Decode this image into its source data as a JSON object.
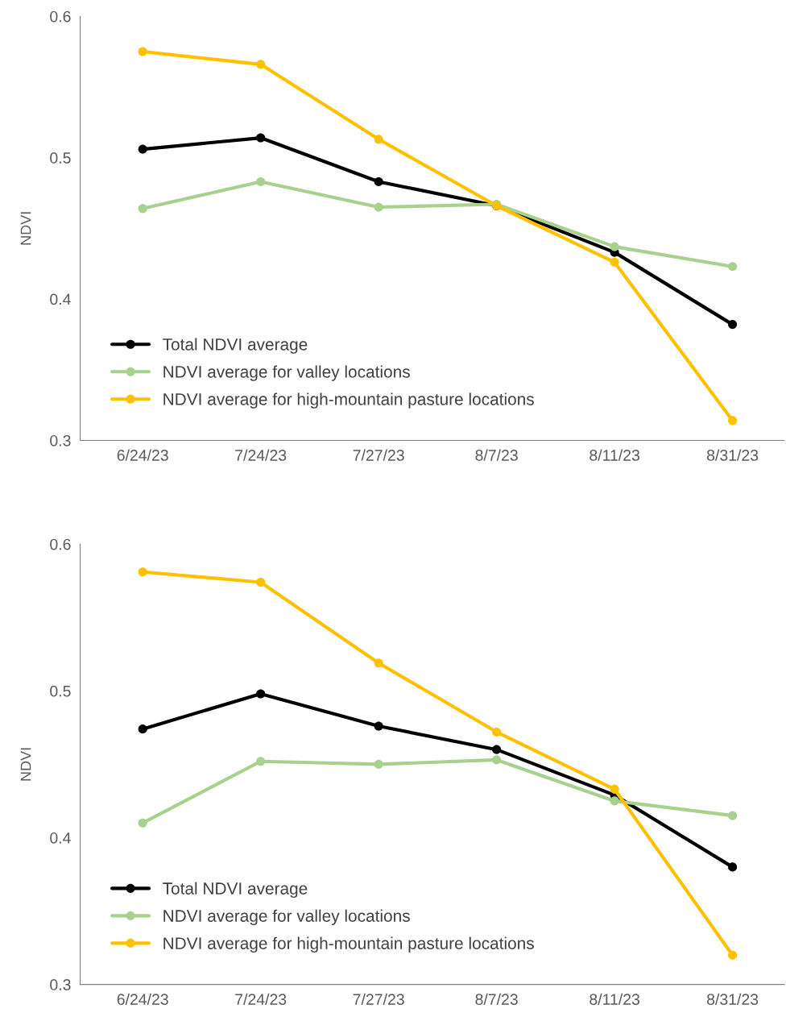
{
  "chart_data": [
    {
      "type": "line",
      "ylabel": "NDVI",
      "categories": [
        "6/24/23",
        "7/24/23",
        "7/27/23",
        "8/7/23",
        "8/11/23",
        "8/31/23"
      ],
      "ylim": [
        0.3,
        0.6
      ],
      "yticks": [
        0.3,
        0.4,
        0.5,
        0.6
      ],
      "grid": false,
      "legend": "bottom left",
      "marker": "circle",
      "line_style": "solid",
      "series": [
        {
          "name": "Total NDVI average",
          "color": "#000000",
          "values": [
            0.506,
            0.514,
            0.483,
            0.466,
            0.433,
            0.382
          ]
        },
        {
          "name": "NDVI average for valley locations",
          "color": "#a9d18e",
          "values": [
            0.464,
            0.483,
            0.465,
            0.467,
            0.437,
            0.423
          ]
        },
        {
          "name": "NDVI average for high-mountain pasture locations",
          "color": "#ffc000",
          "values": [
            0.575,
            0.566,
            0.513,
            0.466,
            0.426,
            0.314
          ]
        }
      ]
    },
    {
      "type": "line",
      "ylabel": "NDVI",
      "categories": [
        "6/24/23",
        "7/24/23",
        "7/27/23",
        "8/7/23",
        "8/11/23",
        "8/31/23"
      ],
      "ylim": [
        0.3,
        0.6
      ],
      "yticks": [
        0.3,
        0.4,
        0.5,
        0.6
      ],
      "grid": false,
      "legend": "bottom left",
      "marker": "circle",
      "line_style": "solid",
      "series": [
        {
          "name": "Total NDVI average",
          "color": "#000000",
          "values": [
            0.474,
            0.498,
            0.476,
            0.46,
            0.429,
            0.38
          ]
        },
        {
          "name": "NDVI average for valley locations",
          "color": "#a9d18e",
          "values": [
            0.41,
            0.452,
            0.45,
            0.453,
            0.425,
            0.415
          ]
        },
        {
          "name": "NDVI average for high-mountain pasture locations",
          "color": "#ffc000",
          "values": [
            0.581,
            0.574,
            0.519,
            0.472,
            0.433,
            0.32
          ]
        }
      ]
    }
  ]
}
